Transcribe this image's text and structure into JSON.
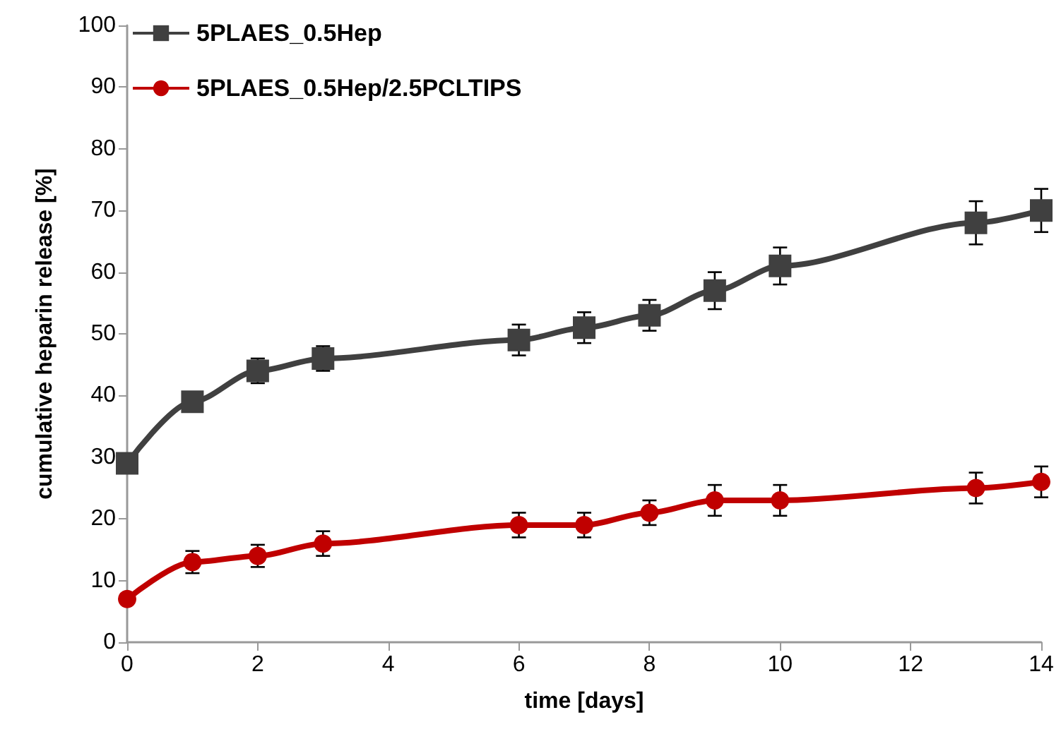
{
  "chart_data": {
    "type": "line",
    "xlabel": "time [days]",
    "ylabel": "cumulative heparin release [%]",
    "x": [
      0,
      1,
      2,
      3,
      6,
      7,
      8,
      9,
      10,
      13,
      14
    ],
    "series": [
      {
        "name": "5PLAES_0.5Hep",
        "color": "#404040",
        "marker": "square",
        "values": [
          29,
          39,
          44,
          46,
          49,
          51,
          53,
          57,
          61,
          68,
          70
        ],
        "errors": [
          null,
          1.5,
          2,
          2,
          2.5,
          2.5,
          2.5,
          3,
          3,
          3.5,
          3.5
        ]
      },
      {
        "name": "5PLAES_0.5Hep/2.5PCLTIPS",
        "color": "#c00000",
        "marker": "circle",
        "values": [
          7,
          13,
          14,
          16,
          19,
          19,
          21,
          23,
          23,
          25,
          26
        ],
        "errors": [
          null,
          1.8,
          1.8,
          2,
          2,
          2,
          2,
          2.5,
          2.5,
          2.5,
          2.5
        ]
      }
    ],
    "xlim": [
      0,
      14
    ],
    "xticks": [
      0,
      2,
      4,
      6,
      8,
      10,
      12,
      14
    ],
    "ylim": [
      0,
      100
    ],
    "yticks": [
      0,
      10,
      20,
      30,
      40,
      50,
      60,
      70,
      80,
      90,
      100
    ],
    "grid": false,
    "legend": "top left",
    "line_style": "solid"
  }
}
